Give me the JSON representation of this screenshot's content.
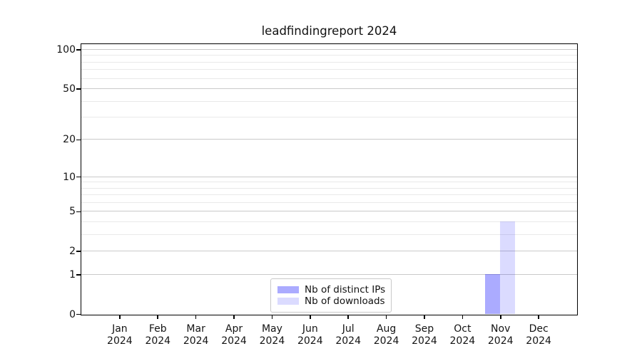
{
  "chart_data": {
    "type": "bar",
    "title": "leadfindingreport 2024",
    "categories": [
      "Jan 2024",
      "Feb 2024",
      "Mar 2024",
      "Apr 2024",
      "May 2024",
      "Jun 2024",
      "Jul 2024",
      "Aug 2024",
      "Sep 2024",
      "Oct 2024",
      "Nov 2024",
      "Dec 2024"
    ],
    "series": [
      {
        "name": "Nb of distinct IPs",
        "color": "rgba(0,0,255,0.33)",
        "values": [
          0,
          0,
          0,
          0,
          0,
          0,
          0,
          0,
          0,
          0,
          1,
          0
        ]
      },
      {
        "name": "Nb of downloads",
        "color": "rgba(0,0,255,0.14)",
        "values": [
          0,
          0,
          0,
          0,
          0,
          0,
          0,
          0,
          0,
          0,
          4,
          0
        ]
      }
    ],
    "xlabel": "",
    "ylabel": "",
    "yscale": "log1p",
    "ylim": [
      0,
      110
    ],
    "y_tick_values": [
      100,
      50,
      20,
      10,
      5,
      2,
      1,
      0
    ],
    "y_tick_labels": [
      "100",
      "50",
      "20",
      "10",
      "5",
      "2",
      "1",
      "0"
    ],
    "y_minor_gridline_values": [
      90,
      80,
      70,
      60,
      40,
      30,
      9,
      8,
      7,
      6,
      4,
      3
    ],
    "grid": "horizontal-only",
    "legend_position": "lower center",
    "colors": {
      "major_grid": "#cacaca",
      "minor_grid": "#e9e9e9",
      "axis": "#000000",
      "text": "#141414",
      "background": "#ffffff"
    }
  }
}
